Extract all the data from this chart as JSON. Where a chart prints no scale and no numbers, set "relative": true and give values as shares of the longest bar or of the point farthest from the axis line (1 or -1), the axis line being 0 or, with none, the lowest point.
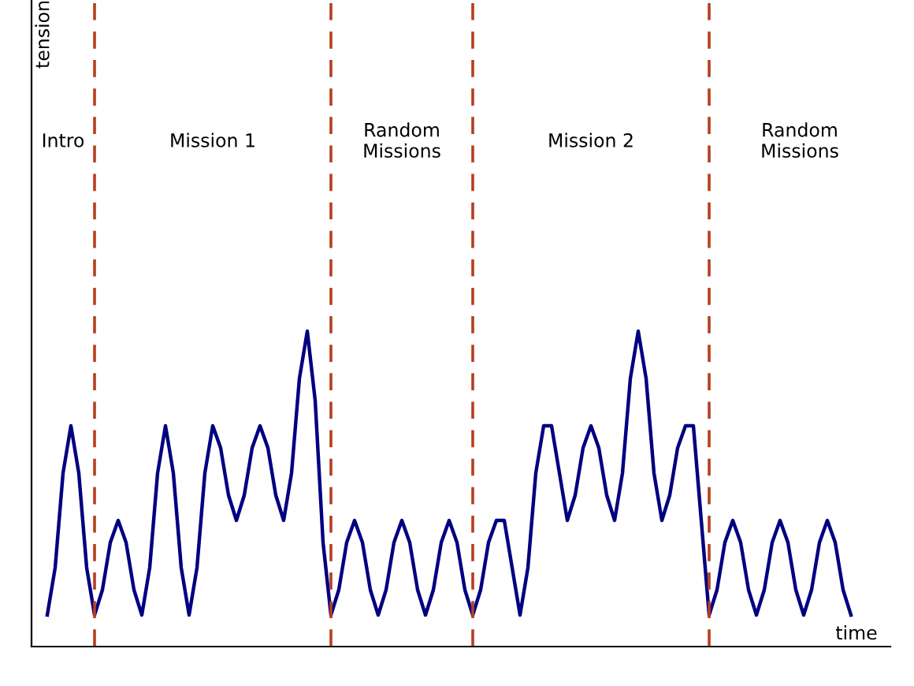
{
  "chart_data": {
    "type": "line",
    "relative": true,
    "xlabel": "time",
    "categories": [
      null,
      null,
      null,
      null,
      null,
      null,
      null,
      null,
      null,
      null,
      null,
      null,
      null,
      null,
      null,
      null,
      null,
      null,
      null,
      null,
      null,
      null,
      null,
      null,
      null,
      null,
      null,
      null,
      null,
      null,
      null,
      null,
      null,
      null,
      null,
      null,
      null,
      null,
      null,
      null,
      null,
      null,
      null,
      null,
      null,
      null,
      null,
      null,
      null,
      null,
      null,
      null,
      null,
      null,
      null,
      null,
      null,
      null,
      null,
      null,
      null,
      null,
      null,
      null,
      null,
      null,
      null,
      null,
      null,
      null,
      null,
      null,
      null,
      null,
      null,
      null,
      null,
      null,
      null,
      null,
      null,
      null,
      null,
      null,
      null,
      null,
      null,
      null,
      null,
      null,
      null,
      null,
      null,
      null,
      null,
      null,
      null,
      null,
      null,
      null,
      null,
      null,
      null
    ],
    "marker": "none",
    "line_style": "solid",
    "series": [
      {
        "color": "#000080",
        "values": [
          0.1,
          0.25,
          0.55,
          0.7,
          0.55,
          0.25,
          0.1,
          0.18,
          0.33,
          0.4,
          0.33,
          0.18,
          0.1,
          0.25,
          0.55,
          0.7,
          0.55,
          0.25,
          0.1,
          0.25,
          0.55,
          0.7,
          0.63,
          0.48,
          0.4,
          0.48,
          0.63,
          0.7,
          0.63,
          0.48,
          0.4,
          0.55,
          0.85,
          1.0,
          0.78,
          0.33,
          0.1,
          0.18,
          0.33,
          0.4,
          0.33,
          0.18,
          0.1,
          0.18,
          0.33,
          0.4,
          0.33,
          0.18,
          0.1,
          0.18,
          0.33,
          0.4,
          0.33,
          0.18,
          0.1,
          0.18,
          0.33,
          0.4,
          0.4,
          0.25,
          0.1,
          0.25,
          0.55,
          0.7,
          0.7,
          0.55,
          0.4,
          0.48,
          0.63,
          0.7,
          0.63,
          0.48,
          0.4,
          0.55,
          0.85,
          1.0,
          0.85,
          0.55,
          0.4,
          0.48,
          0.63,
          0.7,
          0.7,
          0.4,
          0.1,
          0.18,
          0.33,
          0.4,
          0.33,
          0.18,
          0.1,
          0.18,
          0.33,
          0.4,
          0.33,
          0.18,
          0.1,
          0.18,
          0.33,
          0.4,
          0.33,
          0.18,
          0.1
        ]
      }
    ],
    "grid": "x",
    "annotations": [
      "Intro",
      "Mission 1",
      "Random\nMissions",
      "Mission 2",
      "Random\nMissions",
      "tension"
    ]
  }
}
